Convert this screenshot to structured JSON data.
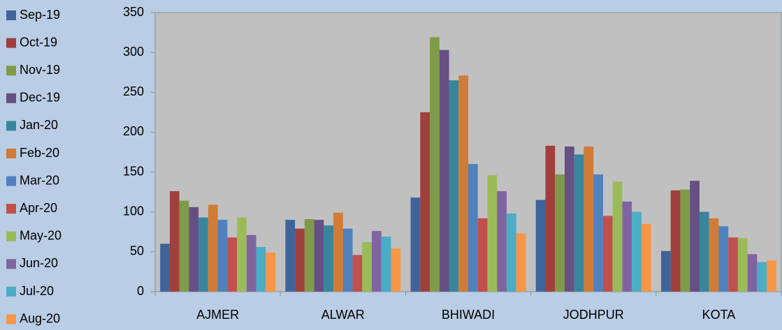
{
  "chart_data": {
    "type": "bar",
    "categories": [
      "AJMER",
      "ALWAR",
      "BHIWADI",
      "JODHPUR",
      "KOTA"
    ],
    "series": [
      {
        "name": "Sep-19",
        "color": "#3f6499",
        "values": [
          60,
          90,
          118,
          115,
          51
        ]
      },
      {
        "name": "Oct-19",
        "color": "#a0403d",
        "values": [
          126,
          79,
          225,
          183,
          127
        ]
      },
      {
        "name": "Nov-19",
        "color": "#7f9a48",
        "values": [
          114,
          91,
          319,
          147,
          128
        ]
      },
      {
        "name": "Dec-19",
        "color": "#664f84",
        "values": [
          106,
          90,
          303,
          182,
          139
        ]
      },
      {
        "name": "Jan-20",
        "color": "#37869b",
        "values": [
          93,
          83,
          265,
          172,
          100
        ]
      },
      {
        "name": "Feb-20",
        "color": "#d07c36",
        "values": [
          109,
          99,
          271,
          182,
          92
        ]
      },
      {
        "name": "Mar-20",
        "color": "#4f81bd",
        "values": [
          90,
          79,
          160,
          147,
          82
        ]
      },
      {
        "name": "Apr-20",
        "color": "#c0504d",
        "values": [
          68,
          46,
          92,
          95,
          68
        ]
      },
      {
        "name": "May-20",
        "color": "#9bbb59",
        "values": [
          93,
          62,
          146,
          138,
          67
        ]
      },
      {
        "name": "Jun-20",
        "color": "#8064a2",
        "values": [
          71,
          76,
          126,
          113,
          47
        ]
      },
      {
        "name": "Jul-20",
        "color": "#4bacc6",
        "values": [
          56,
          69,
          98,
          100,
          37
        ]
      },
      {
        "name": "Aug-20",
        "color": "#f79646",
        "values": [
          49,
          54,
          73,
          85,
          39
        ]
      }
    ],
    "ylim": [
      0,
      350
    ],
    "yticks": [
      0,
      50,
      100,
      150,
      200,
      250,
      300,
      350
    ],
    "grid": false,
    "legend": "left"
  }
}
